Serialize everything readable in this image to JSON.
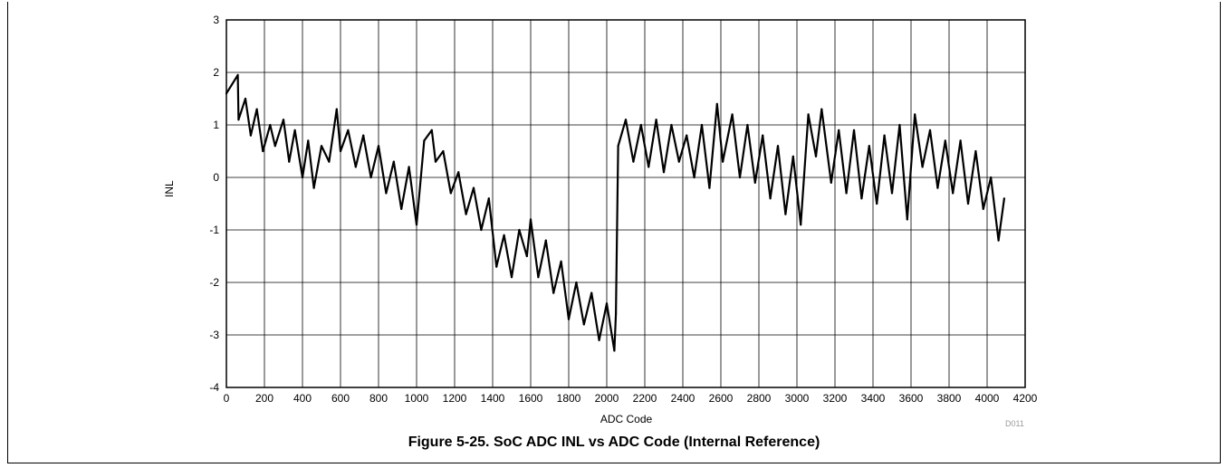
{
  "chart_data": {
    "type": "line",
    "title": "",
    "caption": "Figure 5-25. SoC ADC INL vs ADC Code (Internal Reference)",
    "figure_id": "D011",
    "xlabel": "ADC Code",
    "ylabel": "INL",
    "xlim": [
      0,
      4200
    ],
    "ylim": [
      -4,
      3
    ],
    "xticks": [
      0,
      200,
      400,
      600,
      800,
      1000,
      1200,
      1400,
      1600,
      1800,
      2000,
      2200,
      2400,
      2600,
      2800,
      3000,
      3200,
      3400,
      3600,
      3800,
      4000,
      4200
    ],
    "yticks": [
      3,
      2,
      1,
      0,
      -1,
      -2,
      -3,
      -4
    ],
    "grid": true,
    "series": [
      {
        "color": "#000000",
        "x": [
          0,
          60,
          64,
          100,
          128,
          160,
          192,
          230,
          256,
          300,
          330,
          360,
          400,
          430,
          460,
          500,
          540,
          580,
          600,
          640,
          680,
          720,
          760,
          800,
          840,
          880,
          920,
          960,
          1000,
          1040,
          1080,
          1100,
          1140,
          1180,
          1220,
          1260,
          1300,
          1340,
          1380,
          1420,
          1460,
          1500,
          1540,
          1580,
          1600,
          1640,
          1680,
          1720,
          1760,
          1800,
          1840,
          1880,
          1920,
          1960,
          2000,
          2040,
          2048,
          2060,
          2100,
          2140,
          2180,
          2220,
          2260,
          2300,
          2340,
          2380,
          2420,
          2460,
          2500,
          2540,
          2580,
          2610,
          2660,
          2700,
          2740,
          2780,
          2820,
          2860,
          2900,
          2940,
          2980,
          3020,
          3060,
          3100,
          3130,
          3180,
          3220,
          3260,
          3300,
          3340,
          3380,
          3420,
          3460,
          3500,
          3540,
          3580,
          3620,
          3660,
          3700,
          3740,
          3780,
          3820,
          3860,
          3900,
          3940,
          3980,
          4020,
          4060,
          4090
        ],
        "y": [
          1.6,
          1.95,
          1.1,
          1.5,
          0.8,
          1.3,
          0.5,
          1.0,
          0.6,
          1.1,
          0.3,
          0.9,
          0.0,
          0.7,
          -0.2,
          0.6,
          0.3,
          1.3,
          0.5,
          0.9,
          0.2,
          0.8,
          0.0,
          0.6,
          -0.3,
          0.3,
          -0.6,
          0.2,
          -0.9,
          0.7,
          0.9,
          0.3,
          0.5,
          -0.3,
          0.1,
          -0.7,
          -0.2,
          -1.0,
          -0.4,
          -1.7,
          -1.1,
          -1.9,
          -1.0,
          -1.5,
          -0.8,
          -1.9,
          -1.2,
          -2.2,
          -1.6,
          -2.7,
          -2.0,
          -2.8,
          -2.2,
          -3.1,
          -2.4,
          -3.3,
          -2.6,
          0.6,
          1.1,
          0.3,
          1.0,
          0.2,
          1.1,
          0.1,
          1.0,
          0.3,
          0.8,
          0.0,
          1.0,
          -0.2,
          1.4,
          0.3,
          1.2,
          0.0,
          1.0,
          -0.1,
          0.8,
          -0.4,
          0.6,
          -0.7,
          0.4,
          -0.9,
          1.2,
          0.4,
          1.3,
          -0.1,
          0.9,
          -0.3,
          0.9,
          -0.4,
          0.6,
          -0.5,
          0.8,
          -0.3,
          1.0,
          -0.8,
          1.2,
          0.2,
          0.9,
          -0.2,
          0.7,
          -0.3,
          0.7,
          -0.5,
          0.5,
          -0.6,
          0.0,
          -1.2,
          -0.4
        ]
      }
    ]
  }
}
